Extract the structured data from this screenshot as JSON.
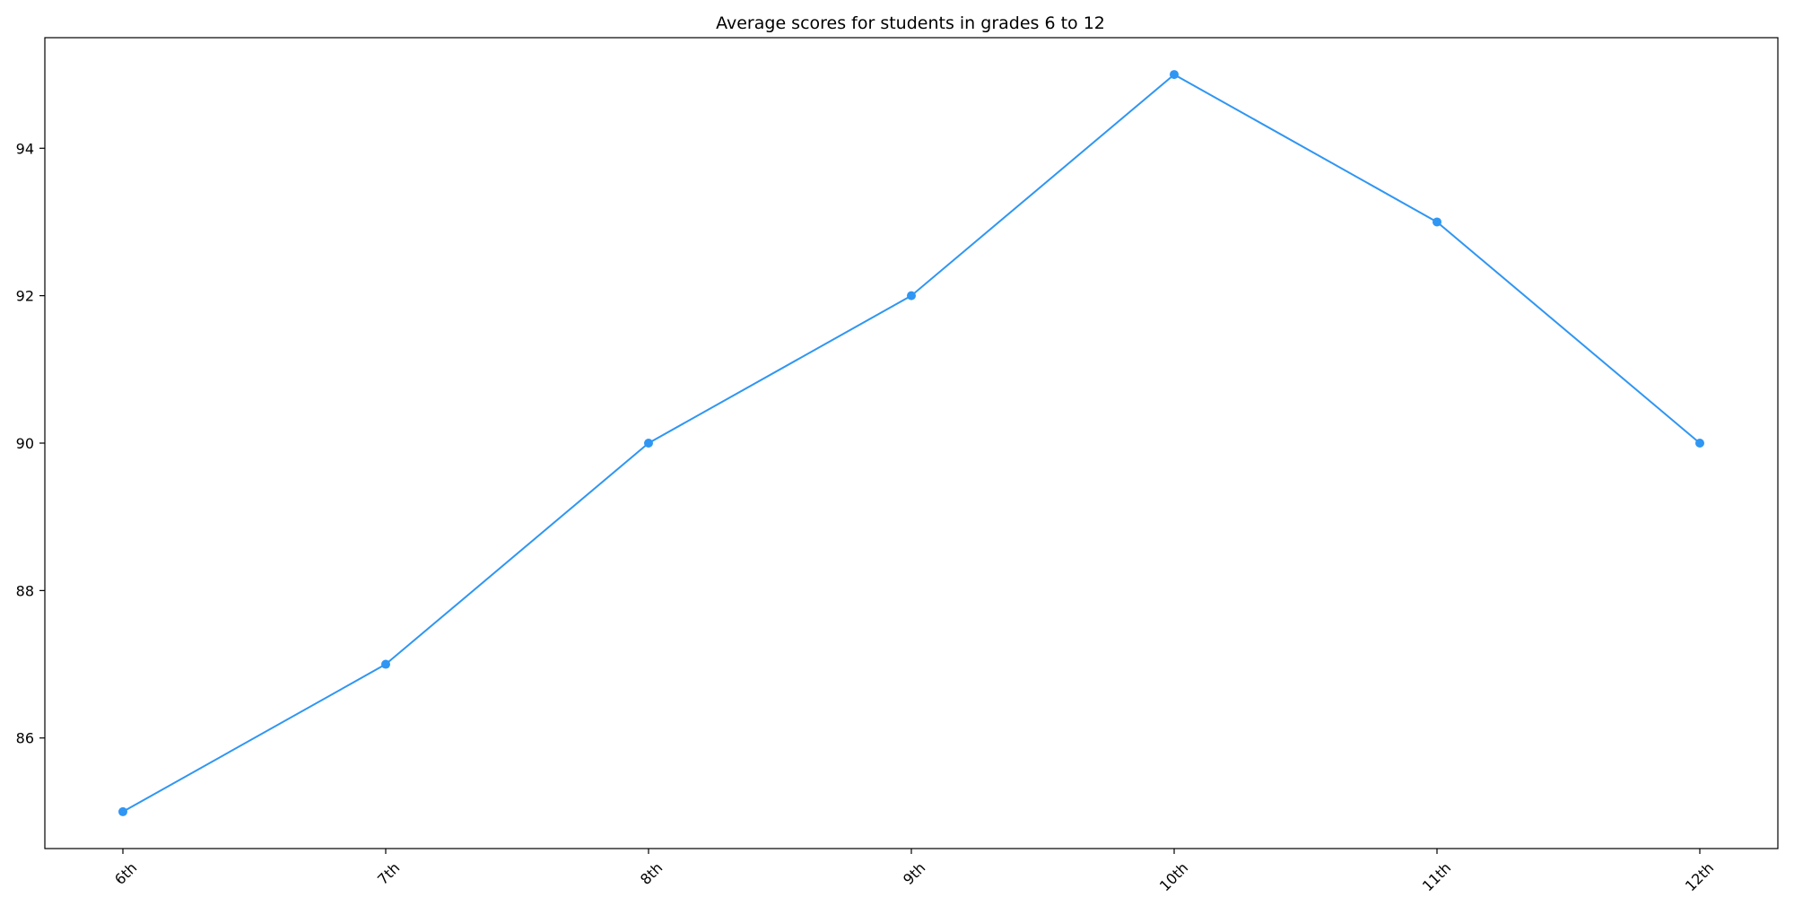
{
  "chart_data": {
    "type": "line",
    "title": "Average scores for students in grades 6 to 12",
    "xlabel": "",
    "ylabel": "",
    "categories": [
      "6th",
      "7th",
      "8th",
      "9th",
      "10th",
      "11th",
      "12th"
    ],
    "series": [
      {
        "values": [
          85,
          87,
          90,
          92,
          95,
          93,
          90
        ],
        "color": "#2f96f3"
      }
    ],
    "ylim": [
      84.5,
      95.5
    ],
    "yticks": [
      86,
      88,
      90,
      92,
      94
    ],
    "grid": false,
    "legend": "none",
    "x_tick_rotation_deg": -45
  }
}
